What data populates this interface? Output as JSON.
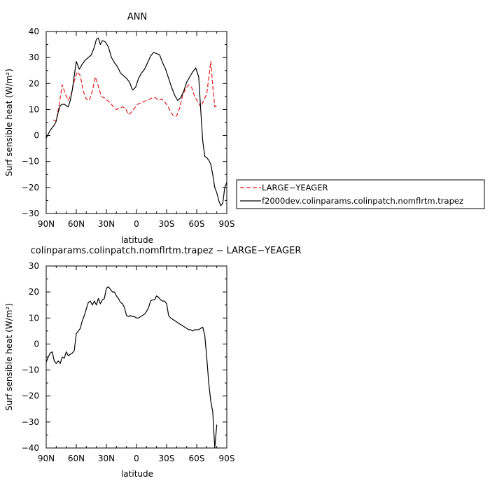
{
  "figure": {
    "panels": [
      {
        "title": "ANN",
        "xlabel": "latitude",
        "ylabel": "Surf sensible heat (W/m²)"
      },
      {
        "title": "colinparams.colinpatch.nomflrtm.trapez − LARGE−YEAGER",
        "xlabel": "latitude",
        "ylabel": "Surf sensible heat (W/m²)"
      }
    ],
    "legend": {
      "entries": [
        {
          "label": "LARGE−YEAGER",
          "color": "#e41a1c",
          "dash": "dashed"
        },
        {
          "label": "f2000dev.colinparams.colinpatch.nomflrtm.trapez",
          "color": "#000000",
          "dash": "solid"
        }
      ]
    }
  },
  "chart_data": [
    {
      "type": "line",
      "title": "ANN",
      "xlabel": "latitude",
      "ylabel": "Surf sensible heat (W/m²)",
      "x_direction": "north-to-south",
      "xlim": [
        90,
        -90
      ],
      "ylim": [
        -30,
        40
      ],
      "xticks": [
        90,
        60,
        30,
        0,
        -30,
        -60,
        -90
      ],
      "xtick_labels": [
        "90N",
        "60N",
        "30N",
        "0",
        "30S",
        "60S",
        "90S"
      ],
      "yticks": [
        -30,
        -20,
        -10,
        0,
        10,
        20,
        30,
        40
      ],
      "ytick_labels": [
        "−30",
        "−20",
        "−10",
        "0",
        "10",
        "20",
        "30",
        "40"
      ],
      "grid": false,
      "legend_position": "right",
      "series": [
        {
          "name": "LARGE−YEAGER",
          "color": "#e41a1c",
          "dash": "dashed",
          "x": [
            83,
            80,
            77,
            74,
            71,
            68,
            65,
            62,
            59,
            56,
            53,
            50,
            47,
            44,
            41,
            38,
            35,
            32,
            29,
            26,
            23,
            20,
            17,
            14,
            11,
            8,
            5,
            2,
            -1,
            -4,
            -7,
            -10,
            -13,
            -16,
            -19,
            -22,
            -25,
            -28,
            -31,
            -34,
            -37,
            -40,
            -43,
            -46,
            -49,
            -52,
            -55,
            -58,
            -61,
            -64,
            -67,
            -70,
            -72,
            -74,
            -76,
            -78,
            -80
          ],
          "values": [
            6,
            5.5,
            12,
            19.5,
            16,
            13.5,
            16,
            21,
            24.5,
            23,
            17,
            14,
            13.5,
            17,
            22.5,
            19,
            15,
            14.5,
            13.5,
            12.5,
            11,
            10,
            10.5,
            11,
            10.5,
            8,
            9,
            10.5,
            12,
            12.5,
            13,
            13.5,
            14,
            14.5,
            14.5,
            13.5,
            14,
            13,
            11.5,
            9,
            7.5,
            7.5,
            10.5,
            15.5,
            18,
            19.5,
            18.5,
            15,
            13,
            11,
            13.5,
            16,
            22,
            28.5,
            19,
            11,
            11.5
          ]
        },
        {
          "name": "f2000dev.colinparams.colinpatch.nomflrtm.trapez",
          "color": "#000000",
          "dash": "solid",
          "x": [
            90,
            88,
            86,
            84,
            82,
            80,
            78,
            76,
            74,
            72,
            70,
            68,
            66,
            64,
            62,
            60,
            57,
            54,
            51,
            48,
            45,
            42,
            40,
            38,
            36,
            34,
            31,
            28,
            25,
            22,
            19,
            16,
            13,
            10,
            7,
            4,
            1,
            -2,
            -5,
            -8,
            -11,
            -14,
            -17,
            -20,
            -23,
            -26,
            -29,
            -32,
            -35,
            -38,
            -41,
            -44,
            -47,
            -50,
            -53,
            -56,
            -59,
            -62,
            -64,
            -66,
            -68,
            -70,
            -72,
            -74,
            -76,
            -78,
            -80,
            -82,
            -84,
            -86,
            -88,
            -90
          ],
          "values": [
            -1,
            0.5,
            2,
            3,
            4,
            5.5,
            9,
            11.5,
            12,
            12,
            11.5,
            11,
            13.5,
            17.5,
            23,
            28.5,
            25.5,
            27.5,
            29,
            30,
            31,
            34,
            37,
            37.5,
            35,
            36.5,
            36,
            34,
            30,
            28,
            26.5,
            24,
            23,
            22,
            20.5,
            17.5,
            18.5,
            22,
            24,
            25.5,
            28,
            30.5,
            32,
            31.5,
            31,
            28,
            25.5,
            22,
            18.5,
            15.5,
            13.5,
            14.5,
            17,
            20.5,
            22.5,
            24.5,
            26,
            22.5,
            10,
            -2,
            -8,
            -8.5,
            -9.5,
            -11,
            -15,
            -20,
            -22,
            -25,
            -27,
            -26,
            -20,
            -18
          ]
        }
      ]
    },
    {
      "type": "line",
      "title": "colinparams.colinpatch.nomflrtm.trapez − LARGE−YEAGER",
      "xlabel": "latitude",
      "ylabel": "Surf sensible heat (W/m²)",
      "x_direction": "north-to-south",
      "xlim": [
        90,
        -90
      ],
      "ylim": [
        -40,
        30
      ],
      "xticks": [
        90,
        60,
        30,
        0,
        -30,
        -60,
        -90
      ],
      "xtick_labels": [
        "90N",
        "60N",
        "30N",
        "0",
        "30S",
        "60S",
        "90S"
      ],
      "yticks": [
        -40,
        -30,
        -20,
        -10,
        0,
        10,
        20,
        30
      ],
      "ytick_labels": [
        "−40",
        "−30",
        "−20",
        "−10",
        "0",
        "10",
        "20",
        "30"
      ],
      "grid": false,
      "series": [
        {
          "color": "#000000",
          "dash": "solid",
          "x": [
            90,
            88,
            86,
            84,
            82,
            80,
            78,
            76,
            74,
            72,
            70,
            68,
            66,
            64,
            62,
            60,
            58,
            56,
            54,
            52,
            50,
            48,
            46,
            44,
            42,
            40,
            38,
            36,
            34,
            32,
            30,
            28,
            26,
            24,
            22,
            20,
            18,
            16,
            14,
            12,
            10,
            8,
            6,
            4,
            2,
            0,
            -2,
            -4,
            -6,
            -8,
            -10,
            -12,
            -14,
            -16,
            -18,
            -20,
            -22,
            -24,
            -26,
            -28,
            -30,
            -32,
            -34,
            -36,
            -38,
            -40,
            -42,
            -44,
            -46,
            -48,
            -50,
            -52,
            -54,
            -56,
            -58,
            -60,
            -62,
            -64,
            -66,
            -68,
            -70,
            -72,
            -74,
            -76,
            -78,
            -80
          ],
          "values": [
            -7,
            -5,
            -3.5,
            -3,
            -6.5,
            -7.5,
            -6.5,
            -7.5,
            -5,
            -5.5,
            -3,
            -4.5,
            -4,
            -3.5,
            -2.5,
            4,
            5,
            6,
            9,
            11,
            13.5,
            16,
            16.5,
            15,
            16.5,
            15,
            17.5,
            15.5,
            17,
            17.5,
            21.5,
            22,
            21,
            20,
            20,
            18.5,
            17.5,
            16,
            15.5,
            14,
            11,
            10.5,
            11,
            10.5,
            10.5,
            10,
            10,
            10.5,
            11,
            11.5,
            12.5,
            14,
            16.5,
            17,
            17,
            18.5,
            18,
            17,
            16.5,
            16.5,
            15.5,
            11,
            10,
            9.5,
            9,
            8.5,
            8,
            7.5,
            7,
            6.5,
            6,
            5.5,
            5.5,
            5,
            5.5,
            5.5,
            5.5,
            6,
            6.5,
            3.5,
            -5,
            -15,
            -22,
            -26,
            -40,
            -31
          ]
        }
      ]
    }
  ]
}
